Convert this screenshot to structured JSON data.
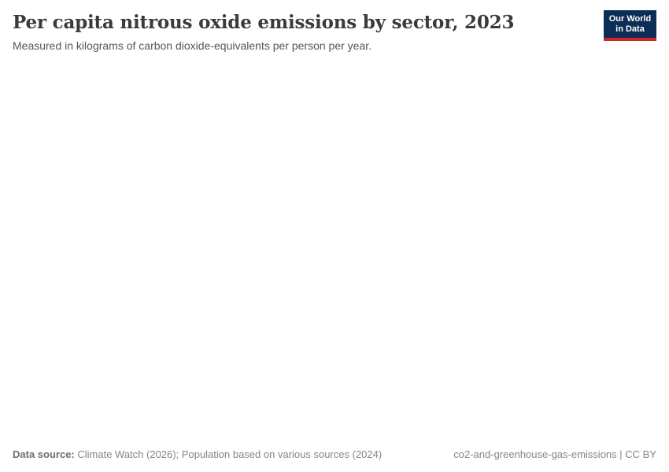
{
  "colors": {
    "background": "#ffffff",
    "title_text": "#3b3b3b",
    "subtitle_text": "#565656",
    "footer_text": "#858585",
    "logo_navy": "#0c2d56",
    "logo_red": "#cc2631",
    "logo_text": "#ffffff"
  },
  "header": {
    "title": "Per capita nitrous oxide emissions by sector, 2023",
    "subtitle": "Measured in kilograms of carbon dioxide-equivalents per person per year.",
    "logo": {
      "line1": "Our World",
      "line2": "in Data"
    }
  },
  "footer": {
    "sources_label": "Data source:",
    "sources_text": " Climate Watch (2026); Population based on various sources (2024)",
    "right_text": "co2-and-greenhouse-gas-emissions | CC BY"
  },
  "chart_data": {
    "type": "line",
    "title": "Per capita nitrous oxide emissions by sector, 2023",
    "unit_label": "Measured in kilograms of carbon dioxide-equivalents per person per year.",
    "year": 2023,
    "series": [],
    "categories": [],
    "legend_entries": [],
    "note": "Plot area is blank/unrendered in the screenshot; no axes, gridlines, or data marks are visible."
  }
}
